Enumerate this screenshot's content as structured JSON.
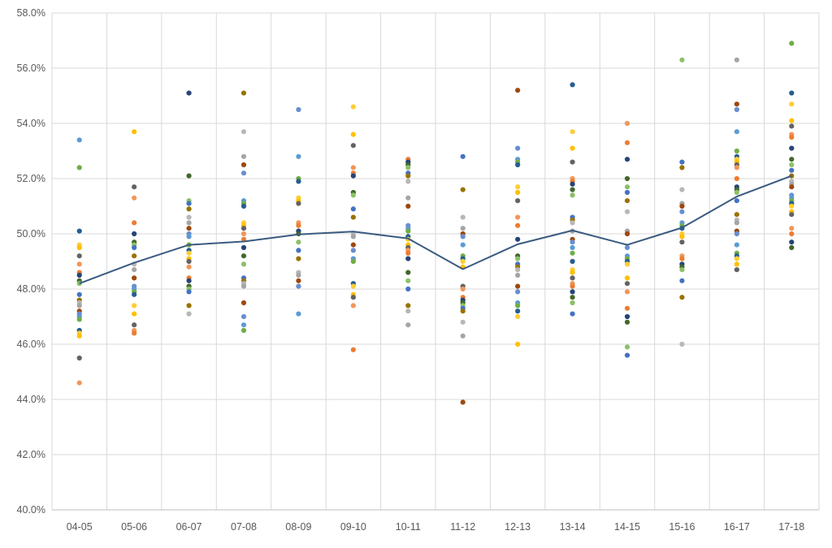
{
  "chart_data": {
    "type": "scatter",
    "title": "",
    "xlabel": "",
    "ylabel": "",
    "categories": [
      "04-05",
      "05-06",
      "06-07",
      "07-08",
      "08-09",
      "09-10",
      "10-11",
      "11-12",
      "12-13",
      "13-14",
      "14-15",
      "15-16",
      "16-17",
      "17-18"
    ],
    "ylim": [
      40.0,
      58.0
    ],
    "yticks": [
      40.0,
      42.0,
      44.0,
      46.0,
      48.0,
      50.0,
      52.0,
      54.0,
      56.0,
      58.0
    ],
    "y_unit": "%",
    "grid": true,
    "legend": "none",
    "colors": [
      "#5b9bd5",
      "#ed7d31",
      "#a5a5a5",
      "#ffc000",
      "#4472c4",
      "#70ad47",
      "#264478",
      "#9e480e",
      "#636363",
      "#997300",
      "#255e91",
      "#43682b",
      "#698ed0",
      "#f1975a",
      "#b7b7b7",
      "#ffcd33",
      "#8cc168"
    ],
    "average_line": {
      "color": "#3a5a80",
      "values": [
        48.2,
        48.95,
        49.6,
        49.72,
        49.98,
        50.08,
        49.83,
        48.72,
        49.62,
        50.12,
        49.6,
        50.22,
        51.35,
        52.1
      ]
    },
    "scatter_points": [
      [
        53.4,
        52.4,
        50.1,
        49.6,
        49.5,
        49.2,
        48.9,
        48.6,
        48.5,
        48.3,
        48.2,
        47.8,
        47.6,
        47.5,
        47.4,
        47.2,
        47.1,
        47.0,
        46.9,
        46.5,
        46.4,
        46.3,
        45.5,
        44.6
      ],
      [
        53.7,
        51.7,
        51.3,
        50.4,
        50.0,
        49.7,
        49.6,
        49.5,
        49.2,
        48.9,
        48.7,
        48.4,
        48.1,
        48.0,
        47.9,
        47.8,
        47.4,
        47.1,
        46.7,
        46.5,
        46.4
      ],
      [
        55.1,
        52.1,
        51.2,
        51.1,
        50.9,
        50.6,
        50.4,
        50.2,
        50.0,
        49.9,
        49.6,
        49.4,
        49.3,
        49.1,
        49.0,
        48.8,
        48.4,
        48.3,
        48.1,
        48.0,
        47.9,
        47.4,
        47.1
      ],
      [
        55.1,
        53.7,
        52.8,
        52.5,
        52.2,
        51.2,
        51.1,
        51.0,
        50.4,
        50.3,
        50.2,
        50.0,
        49.8,
        49.5,
        49.2,
        48.9,
        48.4,
        48.3,
        48.2,
        48.1,
        47.5,
        47.0,
        46.7,
        46.5
      ],
      [
        54.5,
        52.8,
        52.0,
        51.9,
        51.3,
        51.2,
        51.1,
        50.4,
        50.3,
        50.1,
        50.0,
        49.7,
        49.4,
        49.1,
        48.6,
        48.5,
        48.3,
        48.1,
        47.1
      ],
      [
        54.6,
        53.6,
        53.2,
        52.4,
        52.2,
        52.1,
        51.5,
        51.4,
        50.9,
        50.6,
        50.0,
        49.9,
        49.6,
        49.4,
        49.1,
        49.0,
        48.2,
        48.1,
        47.8,
        47.7,
        47.4,
        45.8
      ],
      [
        52.7,
        52.6,
        52.5,
        52.4,
        52.2,
        52.1,
        51.9,
        51.3,
        51.0,
        50.3,
        50.2,
        50.1,
        49.9,
        49.8,
        49.6,
        49.5,
        49.4,
        49.3,
        49.1,
        48.6,
        48.3,
        48.0,
        47.4,
        47.2,
        46.7
      ],
      [
        52.8,
        51.6,
        50.6,
        50.2,
        50.0,
        49.9,
        49.6,
        49.2,
        49.1,
        49.0,
        48.8,
        48.1,
        48.0,
        47.7,
        47.6,
        47.5,
        47.4,
        47.3,
        47.2,
        46.8,
        46.3,
        43.9
      ],
      [
        55.2,
        53.1,
        52.7,
        52.6,
        52.5,
        51.7,
        51.5,
        51.2,
        50.6,
        50.3,
        49.8,
        49.2,
        49.1,
        48.9,
        48.8,
        48.7,
        48.5,
        48.1,
        47.9,
        47.5,
        47.4,
        47.2,
        47.0,
        46.0
      ],
      [
        55.4,
        53.7,
        53.1,
        52.6,
        52.0,
        51.9,
        51.8,
        51.6,
        51.4,
        50.6,
        50.5,
        50.4,
        50.1,
        49.8,
        49.7,
        49.5,
        49.3,
        49.0,
        48.7,
        48.6,
        48.4,
        48.2,
        48.1,
        47.9,
        47.7,
        47.5,
        47.1
      ],
      [
        54.0,
        53.3,
        52.7,
        52.0,
        51.7,
        51.5,
        51.2,
        50.8,
        50.1,
        50.0,
        49.5,
        49.2,
        49.1,
        49.0,
        48.9,
        48.4,
        48.2,
        47.9,
        47.3,
        47.0,
        46.8,
        45.9,
        45.6
      ],
      [
        56.3,
        52.6,
        52.4,
        51.6,
        51.1,
        51.0,
        50.8,
        50.4,
        50.3,
        50.2,
        50.0,
        49.9,
        49.7,
        49.2,
        49.1,
        48.9,
        48.8,
        48.7,
        48.3,
        47.7,
        46.0
      ],
      [
        56.3,
        54.7,
        54.5,
        53.7,
        53.0,
        52.8,
        52.7,
        52.6,
        52.5,
        52.4,
        52.0,
        51.7,
        51.6,
        51.5,
        51.2,
        50.7,
        50.5,
        50.4,
        50.1,
        50.0,
        49.6,
        49.3,
        49.2,
        49.1,
        48.9,
        48.7
      ],
      [
        56.9,
        55.1,
        54.7,
        54.1,
        53.9,
        53.6,
        53.5,
        53.1,
        52.7,
        52.5,
        52.3,
        52.1,
        51.9,
        51.8,
        51.7,
        51.4,
        51.3,
        51.2,
        51.1,
        51.0,
        50.8,
        50.7,
        50.2,
        50.0,
        49.7,
        49.5
      ]
    ]
  }
}
